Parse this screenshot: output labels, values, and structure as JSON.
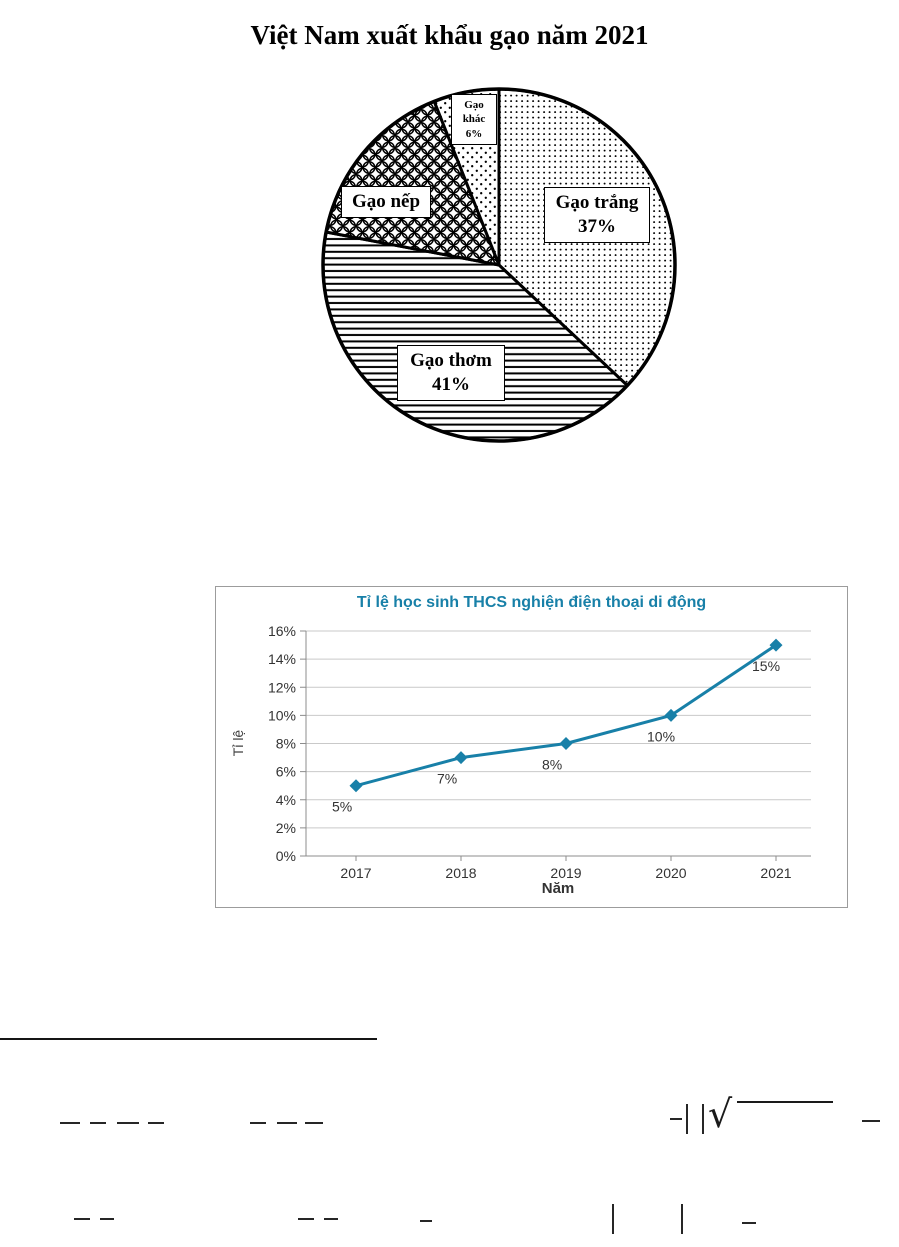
{
  "artifacts": {
    "sqrt": "√"
  },
  "chart_data": [
    {
      "type": "pie",
      "title": "Việt Nam xuất khẩu gạo năm 2021",
      "unit": "%",
      "direction": "clockwise",
      "start_angle_deg": 0,
      "slices": [
        {
          "label": "Gạo trắng",
          "pct": "37%",
          "value": 37,
          "pattern": "dots"
        },
        {
          "label": "Gạo thơm",
          "pct": "41%",
          "value": 41,
          "pattern": "hlines"
        },
        {
          "label": "Gạo nếp",
          "pct": "",
          "value": 16,
          "pattern": "scales"
        },
        {
          "label": "Gạo khác",
          "pct": "6%",
          "value": 6,
          "pattern": "dots_sparse"
        }
      ]
    },
    {
      "type": "line",
      "title": "Tỉ lệ học sinh THCS nghiện điện thoại di động",
      "xlabel": "Năm",
      "ylabel": "Tỉ lệ",
      "x": [
        "2017",
        "2018",
        "2019",
        "2020",
        "2021"
      ],
      "values": [
        5,
        7,
        8,
        10,
        15
      ],
      "point_labels": [
        "5%",
        "7%",
        "8%",
        "10%",
        "15%"
      ],
      "ylim": [
        0,
        16
      ],
      "ytick_step": 2,
      "ytick_suffix": "%",
      "grid": true,
      "legend": false,
      "line_color": "#1880A8",
      "title_color": "#1880A8"
    }
  ]
}
